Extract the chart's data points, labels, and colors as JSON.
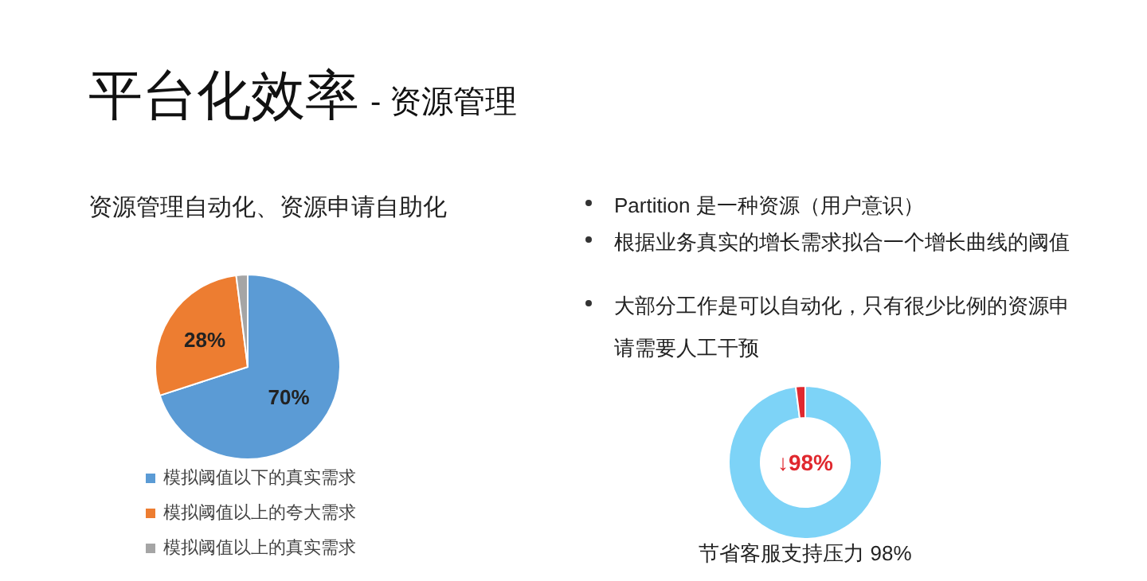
{
  "chart_data": [
    {
      "type": "other",
      "title": "平台化效率",
      "subtitle": "- 资源管理",
      "annotations": [
        "Partition 是一种资源（用户意识）",
        "根据业务真实的增长需求拟合一个增长曲线的阈值",
        "大部分工作是可以自动化，只有很少比例的资源申请需要人工干预"
      ]
    },
    {
      "type": "pie",
      "title": "资源管理自动化、资源申请自助化",
      "categories": [
        "模拟阈值以下的真实需求",
        "模拟阈值以上的夸大需求",
        "模拟阈值以上的真实需求"
      ],
      "values": [
        70,
        28,
        2
      ],
      "colors": [
        "#5b9bd5",
        "#ed7d31",
        "#a5a5a5"
      ],
      "value_labels": [
        "70%",
        "28%",
        null
      ],
      "legend": "bottom"
    },
    {
      "type": "donut",
      "title": "节省客服支持压力 98%",
      "categories": [
        null,
        null
      ],
      "values": [
        98,
        2
      ],
      "colors": [
        "#7dd3f7",
        "#e0282e"
      ],
      "value_labels": [
        "↓98%",
        null
      ]
    }
  ]
}
